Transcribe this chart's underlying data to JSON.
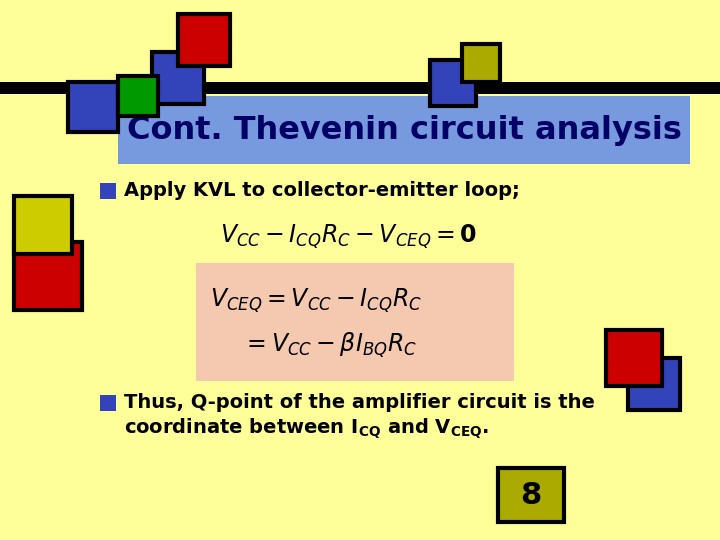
{
  "bg_color": "#FFFF99",
  "title_text": "Cont. Thevenin circuit analysis",
  "title_bg": "#7799DD",
  "title_text_color": "#000066",
  "bullet1": "Apply KVL to collector-emitter loop;",
  "bullet2_line1": "Thus, Q-point of the amplifier circuit is the",
  "bullet2_line2": "coordinate between I",
  "eq_box_color": "#F5C8B0",
  "page_num": "8",
  "page_num_bg": "#AAAA00"
}
